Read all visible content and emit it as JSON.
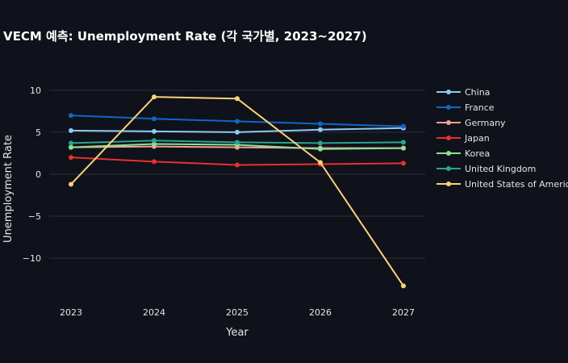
{
  "chart_data": {
    "type": "line",
    "title": "VECM 예측: Unemployment Rate (각 국가별, 2023~2027)",
    "xlabel": "Year",
    "ylabel": "Unemployment Rate",
    "x": [
      2023,
      2024,
      2025,
      2026,
      2027
    ],
    "x_tick_labels": [
      "2023",
      "2024",
      "2025",
      "2026",
      "2027"
    ],
    "y_ticks": [
      10,
      5,
      0,
      -5,
      -10
    ],
    "y_tick_labels": [
      "10",
      "5",
      "0",
      "−5",
      "−10"
    ],
    "ylim": [
      -14.8,
      12.1
    ],
    "grid": true,
    "legend_position": "right",
    "series": [
      {
        "name": "China",
        "color": "#8ec9f5",
        "values": [
          5.2,
          5.1,
          5.0,
          5.3,
          5.5
        ]
      },
      {
        "name": "France",
        "color": "#0f67c6",
        "values": [
          7.0,
          6.6,
          6.3,
          6.0,
          5.7
        ]
      },
      {
        "name": "Germany",
        "color": "#f0a09a",
        "values": [
          3.2,
          3.3,
          3.2,
          3.1,
          3.1
        ]
      },
      {
        "name": "Japan",
        "color": "#e8302e",
        "values": [
          2.0,
          1.5,
          1.1,
          1.2,
          1.3
        ]
      },
      {
        "name": "Korea",
        "color": "#8ee08e",
        "values": [
          3.2,
          3.6,
          3.5,
          3.0,
          3.1
        ]
      },
      {
        "name": "United Kingdom",
        "color": "#28a492",
        "values": [
          3.7,
          4.0,
          3.8,
          3.7,
          3.8
        ]
      },
      {
        "name": "United States of America",
        "color": "#fcd27a",
        "values": [
          -1.2,
          9.2,
          9.0,
          1.4,
          -13.3
        ]
      }
    ]
  }
}
